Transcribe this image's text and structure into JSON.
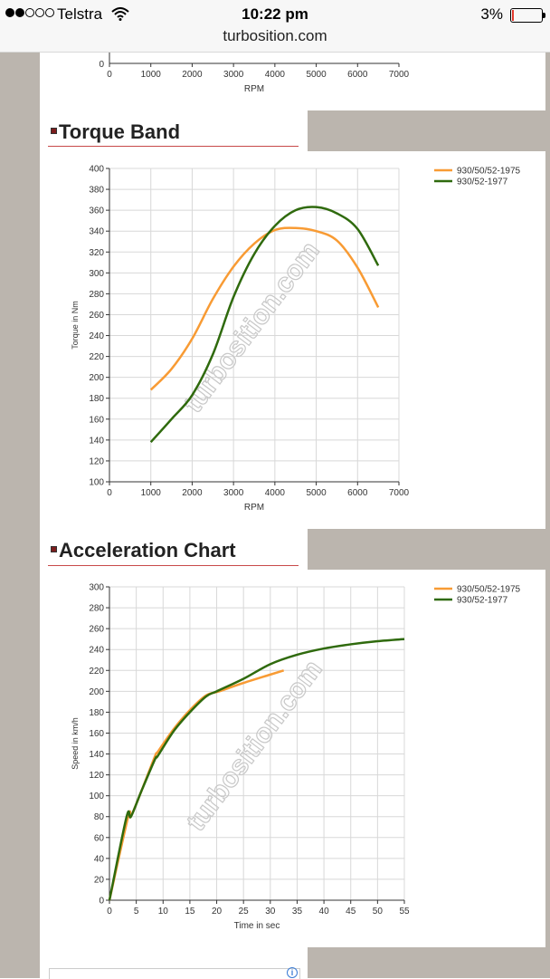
{
  "status_bar": {
    "carrier": "Telstra",
    "time": "10:22 pm",
    "battery": "3%",
    "url": "turbosition.com"
  },
  "watermark": "turbosition.com",
  "top_chart": {
    "xlabel": "RPM",
    "y_tick": "0",
    "x_ticks": [
      "0",
      "1000",
      "2000",
      "3000",
      "4000",
      "5000",
      "6000",
      "7000"
    ]
  },
  "sections": {
    "torque_title": "Torque Band",
    "accel_title": "Acceleration Chart"
  },
  "colors": {
    "series_1975": "#f89b34",
    "series_1977": "#2f6a0d",
    "title_rule": "#c84a4a",
    "sidebar": "#bbb5ae"
  },
  "chart_data": [
    {
      "type": "line",
      "title": "Torque Band",
      "xlabel": "RPM",
      "ylabel": "Torque in Nm",
      "xlim": [
        0,
        7000
      ],
      "ylim": [
        100,
        400
      ],
      "xticks": [
        0,
        1000,
        2000,
        3000,
        4000,
        5000,
        6000,
        7000
      ],
      "yticks": [
        100,
        120,
        140,
        160,
        180,
        200,
        220,
        240,
        260,
        280,
        300,
        320,
        340,
        360,
        380,
        400
      ],
      "grid": true,
      "legend": "top-right",
      "series": [
        {
          "name": "930/50/52-1975",
          "color": "#f89b34",
          "x": [
            1000,
            1500,
            2000,
            2500,
            3000,
            3500,
            4000,
            4500,
            5000,
            5500,
            6000,
            6500
          ],
          "y": [
            188,
            208,
            237,
            275,
            306,
            328,
            341,
            343,
            340,
            331,
            305,
            267
          ]
        },
        {
          "name": "930/52-1977",
          "color": "#2f6a0d",
          "x": [
            1000,
            1500,
            2000,
            2500,
            3000,
            3500,
            4000,
            4500,
            5000,
            5500,
            6000,
            6500
          ],
          "y": [
            138,
            160,
            183,
            222,
            277,
            318,
            345,
            360,
            363,
            357,
            342,
            307
          ]
        }
      ]
    },
    {
      "type": "line",
      "title": "Acceleration Chart",
      "xlabel": "Time in sec",
      "ylabel": "Speed in km/h",
      "xlim": [
        0,
        55
      ],
      "ylim": [
        0,
        300
      ],
      "xticks": [
        0,
        5,
        10,
        15,
        20,
        25,
        30,
        35,
        40,
        45,
        50,
        55
      ],
      "yticks": [
        0,
        20,
        40,
        60,
        80,
        100,
        120,
        140,
        160,
        180,
        200,
        220,
        240,
        260,
        280,
        300
      ],
      "grid": true,
      "legend": "top-right",
      "series": [
        {
          "name": "930/50/52-1975",
          "color": "#f89b34",
          "x": [
            0,
            3.5,
            4,
            6,
            8.5,
            9,
            12,
            15,
            18,
            20.5,
            25,
            30,
            32.5
          ],
          "y": [
            0,
            80,
            80,
            105,
            138,
            142,
            164,
            182,
            196,
            200,
            208,
            216,
            220
          ]
        },
        {
          "name": "930/52-1977",
          "color": "#2f6a0d",
          "x": [
            0,
            3.2,
            4,
            6,
            8.5,
            9,
            12,
            15,
            18,
            20,
            25,
            30,
            35,
            40,
            45,
            50,
            55
          ],
          "y": [
            0,
            80,
            80,
            105,
            135,
            138,
            162,
            180,
            195,
            200,
            212,
            226,
            235,
            241,
            245,
            248,
            250
          ]
        }
      ]
    }
  ]
}
